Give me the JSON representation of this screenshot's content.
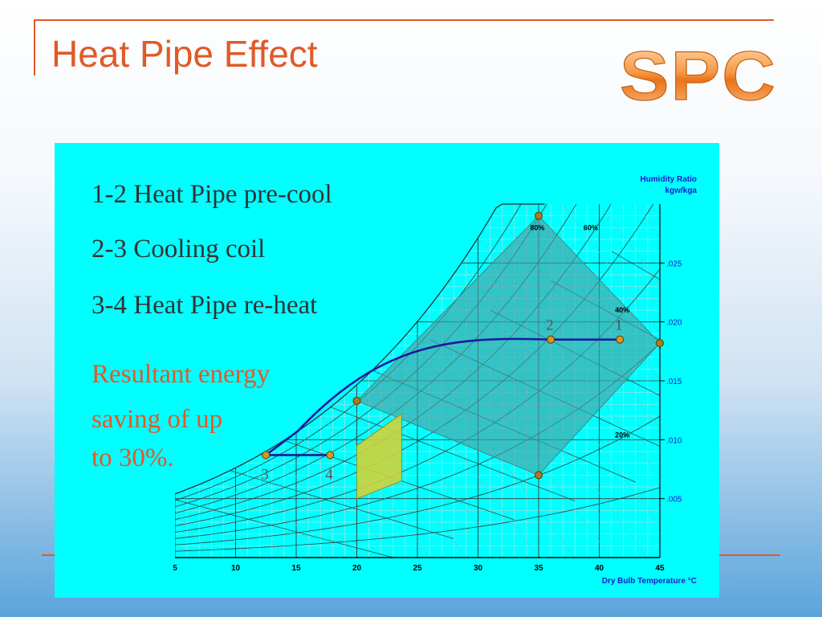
{
  "slide": {
    "title": "Heat Pipe Effect",
    "logo_text": "SPC",
    "accent_color": "#e05a28",
    "panel_color": "#00ffff"
  },
  "legend_lines": [
    "1-2 Heat Pipe pre-cool",
    "2-3 Cooling coil",
    "3-4 Heat Pipe re-heat"
  ],
  "result_lines": [
    "Resultant energy",
    "saving of up",
    "to 30%."
  ],
  "chart_data": {
    "type": "psychrometric",
    "xlabel": "Dry Bulb Temperature °C",
    "ylabel": "Humidity Ratio",
    "ylabel_unit": "kgw/kga",
    "x_ticks": [
      5,
      10,
      15,
      20,
      25,
      30,
      35,
      40,
      45
    ],
    "y_ticks": [
      0.005,
      0.01,
      0.015,
      0.02,
      0.025
    ],
    "y_tick_labels": [
      ".005",
      ".010",
      ".015",
      ".020",
      ".025"
    ],
    "xlim": [
      5,
      45
    ],
    "ylim": [
      0,
      0.03
    ],
    "rh_labels": [
      {
        "text": "80%",
        "x": 34.3,
        "y": 0.0278
      },
      {
        "text": "60%",
        "x": 38.7,
        "y": 0.0278
      },
      {
        "text": "40%",
        "x": 41.3,
        "y": 0.0208
      },
      {
        "text": "20%",
        "x": 41.3,
        "y": 0.0102
      }
    ],
    "process_path": [
      {
        "x": 41.7,
        "y": 0.0185
      },
      {
        "x": 36.0,
        "y": 0.0185
      },
      {
        "x": 12.5,
        "y": 0.0087
      },
      {
        "x": 17.8,
        "y": 0.0087
      }
    ],
    "state_points": [
      {
        "label": "1",
        "x": 41.7,
        "y": 0.0185
      },
      {
        "label": "2",
        "x": 36.0,
        "y": 0.0185
      },
      {
        "label": "3",
        "x": 12.5,
        "y": 0.0087
      },
      {
        "label": "4",
        "x": 17.8,
        "y": 0.0087
      }
    ],
    "comfort_zone_corners": [
      {
        "x": 35.0,
        "y": 0.029
      },
      {
        "x": 45.0,
        "y": 0.0182
      },
      {
        "x": 35.0,
        "y": 0.007
      },
      {
        "x": 20.0,
        "y": 0.0133
      }
    ],
    "target_zone_corners": [
      {
        "x": 20.0,
        "y": 0.0095
      },
      {
        "x": 23.7,
        "y": 0.0122
      },
      {
        "x": 23.7,
        "y": 0.0065
      },
      {
        "x": 20.0,
        "y": 0.005
      }
    ],
    "series_colors": {
      "process": "#1a1aa0",
      "points": "#d79a1e",
      "zone": "#4f9ea2",
      "target": "#cfd33a",
      "axis_text": "#1a1acc"
    }
  }
}
